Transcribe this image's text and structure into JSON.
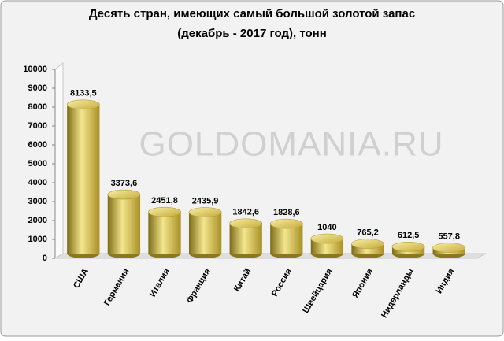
{
  "chart_data": {
    "type": "bar",
    "title": [
      "Десять стран, имеющих самый большой золотой запас",
      "(декабрь - 2017 год), тонн"
    ],
    "watermark": "GOLDOMANIA.RU",
    "categories": [
      "США",
      "Германия",
      "Италия",
      "Франция",
      "Китай",
      "Россия",
      "Швейцария",
      "Япония",
      "Нидерланды",
      "Индия"
    ],
    "values": [
      8133.5,
      3373.6,
      2451.8,
      2435.9,
      1842.6,
      1828.6,
      1040,
      765.2,
      612.5,
      557.8
    ],
    "value_labels": [
      "8133,5",
      "3373,6",
      "2451,8",
      "2435,9",
      "1842,6",
      "1828,6",
      "1040",
      "765,2",
      "612,5",
      "557,8"
    ],
    "color": "#d4bd4a",
    "ylim": [
      0,
      10000
    ],
    "yticks": [
      0,
      1000,
      2000,
      3000,
      4000,
      5000,
      6000,
      7000,
      8000,
      9000,
      10000
    ]
  }
}
